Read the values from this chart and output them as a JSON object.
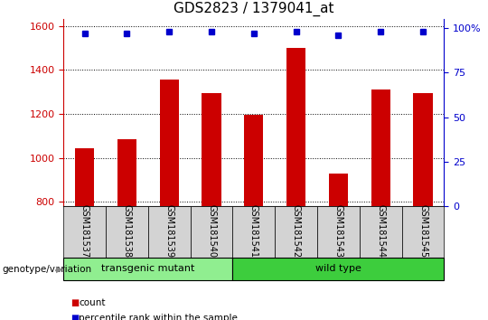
{
  "title": "GDS2823 / 1379041_at",
  "samples": [
    "GSM181537",
    "GSM181538",
    "GSM181539",
    "GSM181540",
    "GSM181541",
    "GSM181542",
    "GSM181543",
    "GSM181544",
    "GSM181545"
  ],
  "counts": [
    1045,
    1085,
    1355,
    1295,
    1195,
    1500,
    930,
    1310,
    1295
  ],
  "percentile_ranks": [
    97,
    97,
    98,
    98,
    97,
    98,
    96,
    98,
    98
  ],
  "ylim_left": [
    780,
    1630
  ],
  "ylim_right": [
    0,
    105
  ],
  "yticks_left": [
    800,
    1000,
    1200,
    1400,
    1600
  ],
  "yticks_right": [
    0,
    25,
    50,
    75,
    100
  ],
  "bar_color": "#cc0000",
  "dot_color": "#0000cc",
  "label_bg_color": "#d3d3d3",
  "transgenic_color": "#90ee90",
  "wildtype_color": "#3dcd3d",
  "transgenic_label": "transgenic mutant",
  "wildtype_label": "wild type",
  "transgenic_samples": [
    0,
    1,
    2,
    3
  ],
  "wildtype_samples": [
    4,
    5,
    6,
    7,
    8
  ],
  "genotype_label": "genotype/variation",
  "legend_count": "count",
  "legend_percentile": "percentile rank within the sample",
  "title_fontsize": 11,
  "tick_fontsize": 8,
  "sample_fontsize": 7,
  "geno_fontsize": 8
}
